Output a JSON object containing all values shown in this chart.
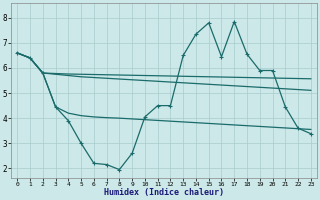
{
  "bg_color": "#cde8e8",
  "grid_color": "#a8cccc",
  "line_color": "#1a6b6b",
  "xlabel": "Humidex (Indice chaleur)",
  "xticks": [
    0,
    1,
    2,
    3,
    4,
    5,
    6,
    7,
    8,
    9,
    10,
    11,
    12,
    13,
    14,
    15,
    16,
    17,
    18,
    19,
    20,
    21,
    22,
    23
  ],
  "yticks": [
    2,
    3,
    4,
    5,
    6,
    7,
    8
  ],
  "ylim": [
    1.6,
    8.6
  ],
  "xlim": [
    -0.5,
    23.5
  ],
  "line1_x": [
    0,
    1,
    2,
    3,
    4,
    5,
    6,
    7,
    8,
    9,
    10,
    11,
    12,
    13,
    14,
    15,
    16,
    17,
    18,
    19,
    20,
    21,
    22,
    23
  ],
  "line1_y": [
    6.6,
    6.4,
    5.8,
    5.78,
    5.76,
    5.75,
    5.74,
    5.73,
    5.72,
    5.71,
    5.7,
    5.69,
    5.68,
    5.67,
    5.66,
    5.65,
    5.64,
    5.63,
    5.62,
    5.61,
    5.6,
    5.59,
    5.58,
    5.57
  ],
  "line2_x": [
    0,
    1,
    2,
    3,
    4,
    5,
    6,
    7,
    8,
    9,
    10,
    11,
    12,
    13,
    14,
    15,
    16,
    17,
    18,
    19,
    20,
    21,
    22,
    23
  ],
  "line2_y": [
    6.6,
    6.4,
    5.8,
    5.75,
    5.7,
    5.65,
    5.62,
    5.59,
    5.56,
    5.53,
    5.5,
    5.47,
    5.44,
    5.41,
    5.38,
    5.35,
    5.32,
    5.29,
    5.26,
    5.23,
    5.2,
    5.17,
    5.14,
    5.11
  ],
  "line3_x": [
    0,
    1,
    2,
    3,
    4,
    5,
    6,
    7,
    8,
    9,
    10,
    11,
    12,
    13,
    14,
    15,
    16,
    17,
    18,
    19,
    20,
    21,
    22,
    23
  ],
  "line3_y": [
    6.6,
    6.4,
    5.8,
    4.45,
    3.9,
    3.0,
    2.2,
    2.15,
    1.95,
    2.6,
    4.05,
    4.5,
    4.5,
    6.5,
    7.35,
    7.8,
    6.45,
    7.85,
    6.55,
    5.9,
    5.9,
    4.45,
    3.6,
    3.38
  ],
  "line4_x": [
    0,
    1,
    2,
    3,
    4,
    5,
    6,
    7,
    8,
    9,
    10,
    11,
    12,
    13,
    14,
    15,
    16,
    17,
    18,
    19,
    20,
    21,
    22,
    23
  ],
  "line4_y": [
    6.6,
    6.4,
    5.8,
    4.45,
    4.2,
    4.1,
    4.05,
    4.02,
    4.0,
    3.97,
    3.94,
    3.91,
    3.88,
    3.85,
    3.82,
    3.79,
    3.76,
    3.73,
    3.7,
    3.67,
    3.64,
    3.61,
    3.58,
    3.55
  ]
}
